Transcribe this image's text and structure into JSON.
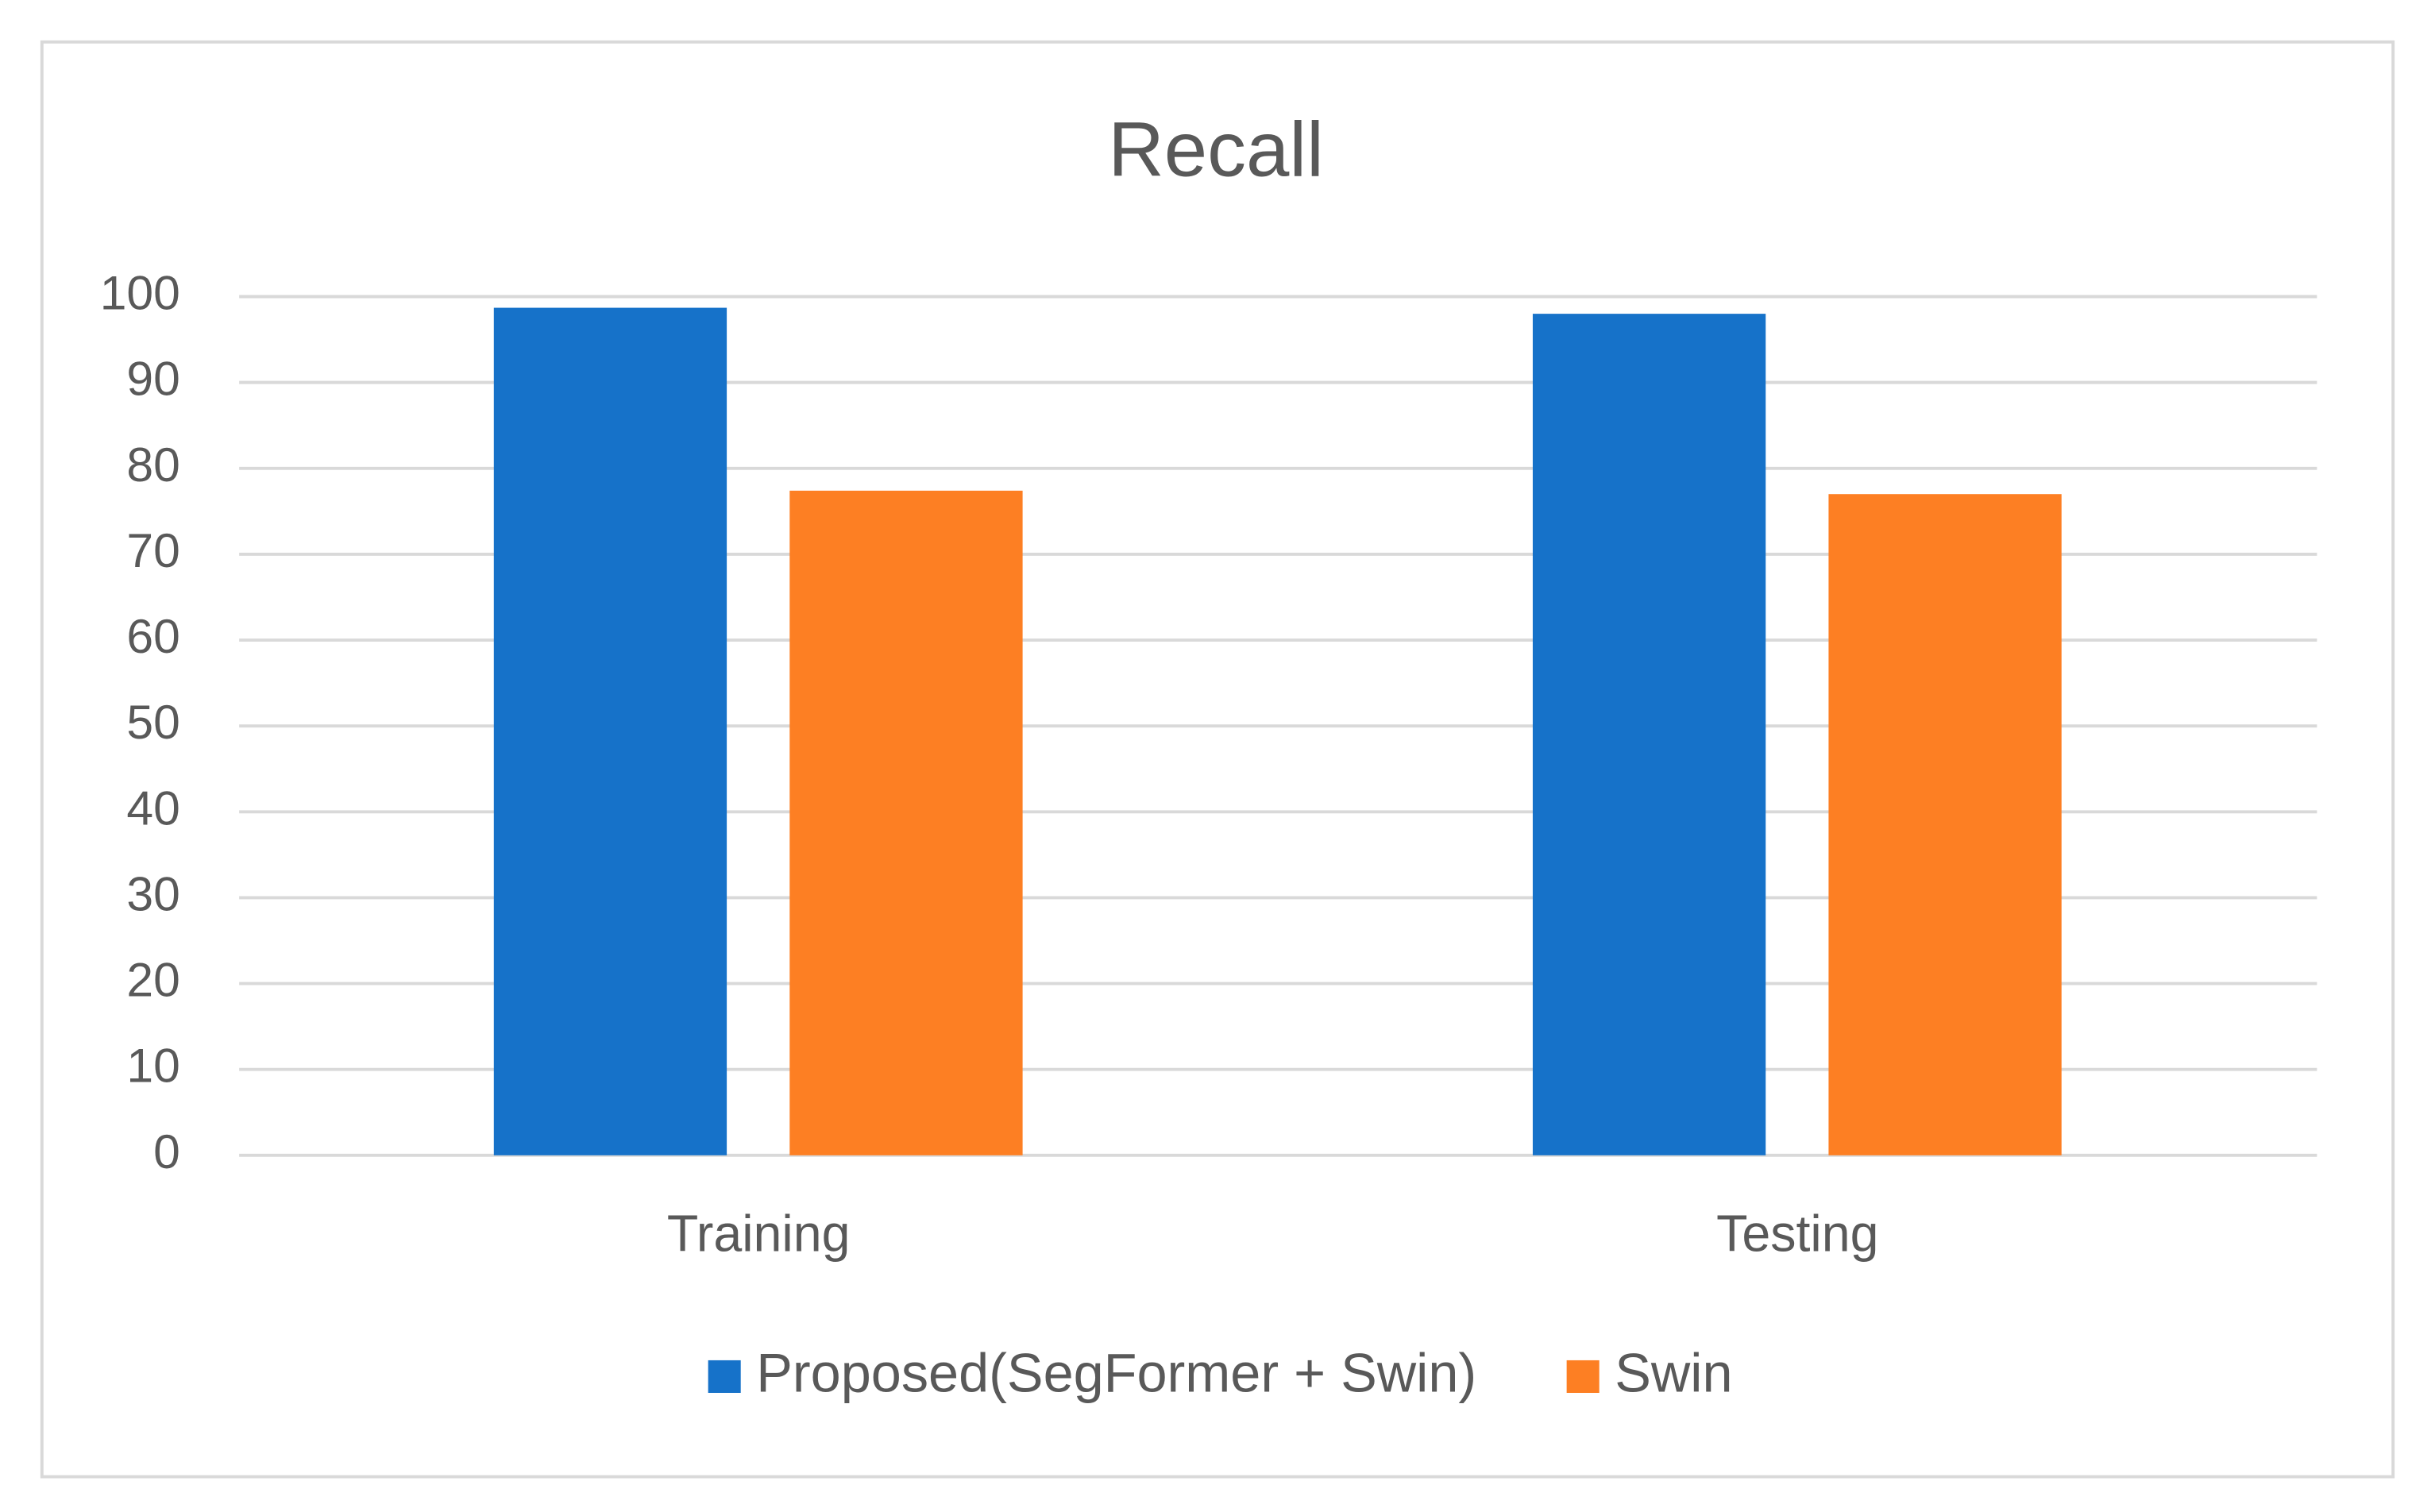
{
  "chart_data": {
    "type": "bar",
    "title": "Recall",
    "categories": [
      "Training",
      "Testing"
    ],
    "series": [
      {
        "name": "Proposed(SegFormer + Swin)",
        "color": "#1672c9",
        "values": [
          98.7,
          98.0
        ]
      },
      {
        "name": "Swin",
        "color": "#fd7f23",
        "values": [
          77.4,
          77.0
        ]
      }
    ],
    "ylim": [
      0,
      100
    ],
    "yticks": [
      0,
      10,
      20,
      30,
      40,
      50,
      60,
      70,
      80,
      90,
      100
    ],
    "grid": true,
    "legend": "bottom"
  }
}
